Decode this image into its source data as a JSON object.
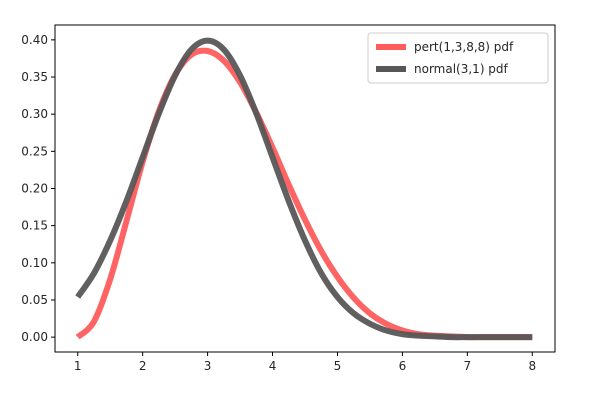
{
  "chart_data": {
    "type": "line",
    "xlim": [
      0.65,
      8.35
    ],
    "ylim": [
      -0.02,
      0.42
    ],
    "x_ticks": [
      1,
      2,
      3,
      4,
      5,
      6,
      7,
      8
    ],
    "y_ticks": [
      0.0,
      0.05,
      0.1,
      0.15,
      0.2,
      0.25,
      0.3,
      0.35,
      0.4
    ],
    "x_tick_labels": [
      "1",
      "2",
      "3",
      "4",
      "5",
      "6",
      "7",
      "8"
    ],
    "y_tick_labels": [
      "0.00",
      "0.05",
      "0.10",
      "0.15",
      "0.20",
      "0.25",
      "0.30",
      "0.35",
      "0.40"
    ],
    "grid": false,
    "legend_position": "top-right",
    "series": [
      {
        "name": "pert(1,3,8,8) pdf",
        "color": "#ff5c5c",
        "x": [
          1.0,
          1.25,
          1.5,
          1.75,
          2.0,
          2.25,
          2.5,
          2.75,
          3.0,
          3.25,
          3.5,
          3.75,
          4.0,
          4.25,
          4.5,
          4.75,
          5.0,
          5.25,
          5.5,
          5.75,
          6.0,
          6.25,
          6.5,
          6.75,
          7.0,
          7.25,
          7.5,
          7.75,
          8.0
        ],
        "y": [
          0.0,
          0.021,
          0.078,
          0.156,
          0.236,
          0.304,
          0.353,
          0.38,
          0.385,
          0.372,
          0.343,
          0.302,
          0.255,
          0.205,
          0.158,
          0.116,
          0.081,
          0.053,
          0.032,
          0.018,
          0.009,
          0.004,
          0.002,
          0.001,
          0.0,
          0.0,
          0.0,
          0.0,
          0.0
        ]
      },
      {
        "name": "normal(3,1) pdf",
        "color": "#575757",
        "x": [
          1.0,
          1.25,
          1.5,
          1.75,
          2.0,
          2.25,
          2.5,
          2.75,
          3.0,
          3.25,
          3.5,
          3.75,
          4.0,
          4.25,
          4.5,
          4.75,
          5.0,
          5.25,
          5.5,
          5.75,
          6.0,
          6.25,
          6.5,
          6.75,
          7.0,
          7.25,
          7.5,
          7.75,
          8.0
        ],
        "y": [
          0.054,
          0.086,
          0.13,
          0.183,
          0.242,
          0.301,
          0.352,
          0.387,
          0.399,
          0.387,
          0.352,
          0.301,
          0.242,
          0.183,
          0.13,
          0.086,
          0.054,
          0.032,
          0.018,
          0.009,
          0.004,
          0.002,
          0.001,
          0.0,
          0.0,
          0.0,
          0.0,
          0.0,
          0.0
        ]
      }
    ]
  }
}
